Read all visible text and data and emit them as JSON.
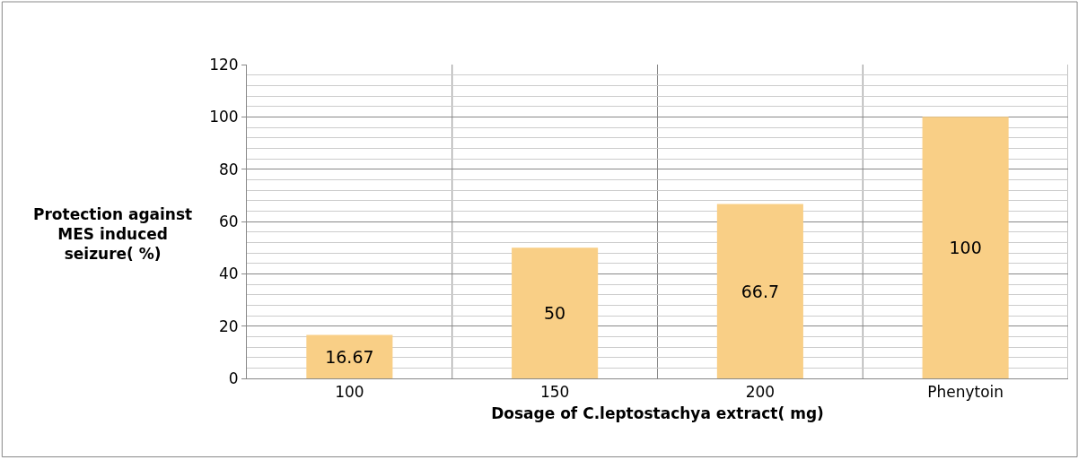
{
  "chart_data": {
    "type": "bar",
    "xlabel": "Dosage of C.leptostachya extract( mg)",
    "ylabel": "Protection against MES induced seizure( %)",
    "categories": [
      "100",
      "150",
      "200",
      "Phenytoin"
    ],
    "values": [
      16.67,
      50,
      66.7,
      100
    ],
    "color": "#f9cf86",
    "ylim": [
      0,
      120
    ],
    "yticks": [
      0,
      20,
      40,
      60,
      80,
      100,
      120
    ],
    "grid": true,
    "data_labels": true
  }
}
